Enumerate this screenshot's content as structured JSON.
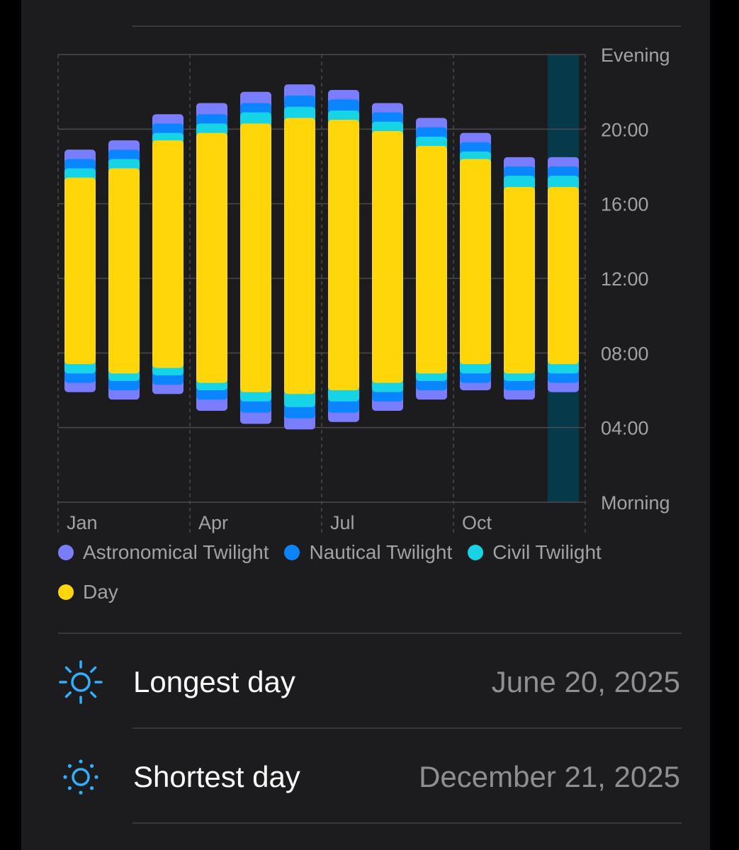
{
  "chart_data": {
    "type": "bar",
    "subtype": "stacked-range",
    "categories": [
      "Jan",
      "Feb",
      "Mar",
      "Apr",
      "May",
      "Jun",
      "Jul",
      "Aug",
      "Sep",
      "Oct",
      "Nov",
      "Dec"
    ],
    "x_tick_labels": [
      "Jan",
      "Apr",
      "Jul",
      "Oct"
    ],
    "y_axis": {
      "top_label": "Evening",
      "bottom_label": "Morning",
      "tick_labels": [
        "20:00",
        "16:00",
        "12:00",
        "08:00",
        "04:00"
      ],
      "ticks_hours": [
        20,
        16,
        12,
        8,
        4
      ],
      "range_hours": [
        0,
        24
      ],
      "position": "right"
    },
    "grid": true,
    "highlighted_category": "Dec",
    "series": [
      {
        "name": "Astronomical Twilight",
        "color": "#7b7dff",
        "start": [
          5.9,
          5.5,
          5.8,
          4.9,
          4.2,
          3.9,
          4.3,
          4.9,
          5.5,
          6.0,
          5.5,
          5.9
        ],
        "end": [
          18.9,
          19.4,
          20.8,
          21.4,
          22.0,
          22.4,
          22.1,
          21.4,
          20.6,
          19.8,
          18.5,
          18.5
        ]
      },
      {
        "name": "Nautical Twilight",
        "color": "#0a84ff",
        "start": [
          6.4,
          6.0,
          6.3,
          5.5,
          4.8,
          4.5,
          4.8,
          5.4,
          6.0,
          6.4,
          6.0,
          6.4
        ],
        "end": [
          18.4,
          18.9,
          20.3,
          20.8,
          21.4,
          21.8,
          21.6,
          20.9,
          20.1,
          19.3,
          18.0,
          18.0
        ]
      },
      {
        "name": "Civil Twilight",
        "color": "#16d4e6",
        "start": [
          6.9,
          6.5,
          6.8,
          6.0,
          5.4,
          5.1,
          5.4,
          5.9,
          6.5,
          6.9,
          6.5,
          6.9
        ],
        "end": [
          17.9,
          18.4,
          19.8,
          20.3,
          20.9,
          21.2,
          21.0,
          20.4,
          19.6,
          18.8,
          17.5,
          17.5
        ]
      },
      {
        "name": "Day",
        "color": "#ffd60a",
        "start": [
          7.4,
          6.9,
          7.2,
          6.4,
          5.9,
          5.8,
          6.0,
          6.4,
          6.9,
          7.4,
          6.9,
          7.4
        ],
        "end": [
          17.4,
          17.9,
          19.4,
          19.8,
          20.3,
          20.6,
          20.5,
          19.9,
          19.1,
          18.4,
          16.9,
          16.9
        ]
      }
    ]
  },
  "legend": [
    {
      "label": "Astronomical Twilight",
      "color": "#7b7dff"
    },
    {
      "label": "Nautical Twilight",
      "color": "#0a84ff"
    },
    {
      "label": "Civil Twilight",
      "color": "#16d4e6"
    },
    {
      "label": "Day",
      "color": "#ffd60a"
    }
  ],
  "stats": [
    {
      "label": "Longest day",
      "value": "June 20, 2025",
      "icon": "sun-icon",
      "color": "#30b0ff"
    },
    {
      "label": "Shortest day",
      "value": "December 21, 2025",
      "icon": "sun-icon",
      "color": "#30b0ff"
    }
  ],
  "colors": {
    "background": "#1c1c1e",
    "grid": "#4a4a4e",
    "label": "#a1a1a6",
    "highlight": "#063a4a"
  }
}
